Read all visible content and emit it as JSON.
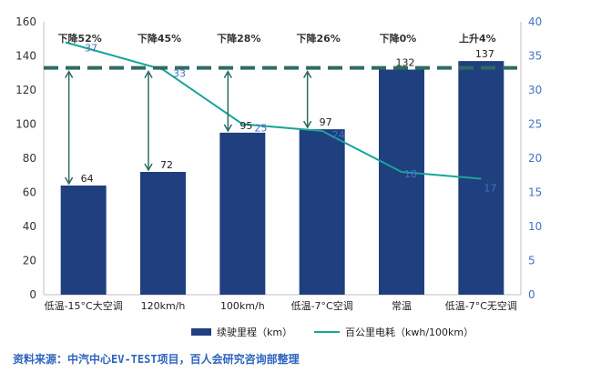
{
  "chart_data": {
    "type": "bar",
    "categories": [
      "低温-15°C大空调",
      "120km/h",
      "100km/h",
      "低温-7°C空调",
      "常温",
      "低温-7°C无空调"
    ],
    "series": [
      {
        "name": "续驶里程（km）",
        "type": "bar",
        "axis": "left",
        "values": [
          64,
          72,
          95,
          97,
          132,
          137
        ],
        "color": "#1f3f7f"
      },
      {
        "name": "百公里电耗（kwh/100km）",
        "type": "line",
        "axis": "right",
        "values": [
          37,
          33,
          25,
          24,
          18,
          17
        ],
        "color": "#1aa39a"
      }
    ],
    "change_labels": [
      "下降52%",
      "下降45%",
      "下降28%",
      "下降26%",
      "下降0%",
      "上升4%"
    ],
    "reference_line": {
      "axis": "left",
      "value": 133,
      "style": "dashed",
      "color": "#2e6b63"
    },
    "left_axis": {
      "ylim": [
        0,
        160
      ],
      "ticks": [
        "0",
        "20",
        "40",
        "60",
        "80",
        "100",
        "120",
        "140",
        "160"
      ]
    },
    "right_axis": {
      "ylim": [
        0,
        40
      ],
      "ticks": [
        "0",
        "5",
        "10",
        "15",
        "20",
        "25",
        "30",
        "35",
        "40"
      ],
      "color": "#4472c4"
    },
    "legend": {
      "position": "bottom"
    }
  },
  "source_note": "资料来源：中汽中心EV-TEST项目，百人会研究咨询部整理"
}
